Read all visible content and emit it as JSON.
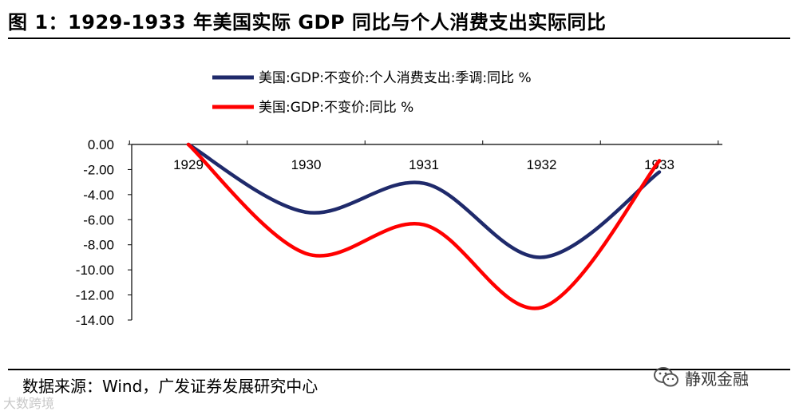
{
  "title": "图 1：1929-1933 年美国实际 GDP 同比与个人消费支出实际同比",
  "source": "数据来源：Wind，广发证券发展研究中心",
  "watermark_left": "大数跨境",
  "brand": {
    "name": "静观金融",
    "icon": "wechat-icon"
  },
  "colors": {
    "consumption": "#1f2a6b",
    "gdp": "#ff0000"
  },
  "chart_data": {
    "type": "line",
    "x": [
      "1929",
      "1930",
      "1931",
      "1932",
      "1933"
    ],
    "series": [
      {
        "name": "美国:GDP:不变价:个人消费支出:季调:同比 %",
        "values": [
          0,
          -5.4,
          -3.1,
          -9.0,
          -2.2
        ]
      },
      {
        "name": "美国:GDP:不变价:同比 %",
        "values": [
          0,
          -8.7,
          -6.4,
          -13.0,
          -1.3
        ]
      }
    ],
    "ylim": [
      -14,
      0
    ],
    "yticks": [
      "0.00",
      "-2.00",
      "-4.00",
      "-6.00",
      "-8.00",
      "-10.00",
      "-12.00",
      "-14.00"
    ],
    "xlabel": "",
    "ylabel": "",
    "grid": false,
    "legend": "top"
  }
}
